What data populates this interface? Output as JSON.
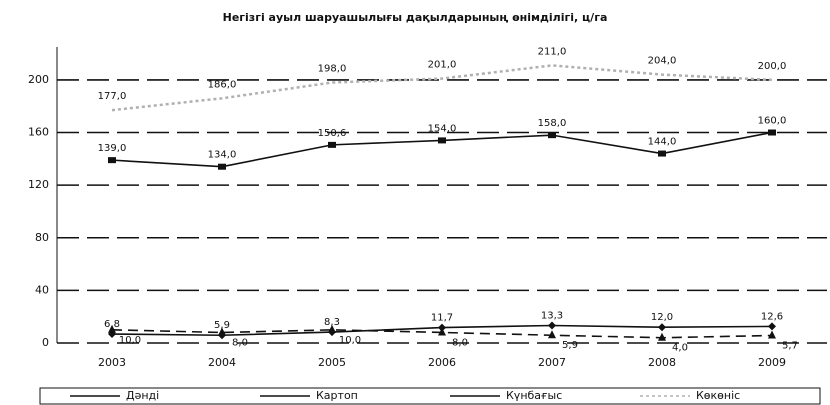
{
  "chart_data": {
    "type": "line",
    "title": "Негізгі ауыл шаруашылығы дақылдарының өнімділігі, ц/га",
    "categories": [
      "2003",
      "2004",
      "2005",
      "2006",
      "2007",
      "2008",
      "2009"
    ],
    "ylim": [
      0,
      225
    ],
    "yticks": [
      0,
      40,
      80,
      120,
      160,
      200
    ],
    "grid": true,
    "legend": "bottom",
    "series": [
      {
        "name": "Дәнді",
        "color": "#111111",
        "marker": "diamond",
        "values": [
          6.8,
          5.9,
          8.3,
          11.7,
          13.3,
          12.0,
          12.6
        ],
        "value_labels": [
          "6,8",
          "5,9",
          "8,3",
          "11,7",
          "13,3",
          "12,0",
          "12,6"
        ]
      },
      {
        "name": "Картоп",
        "color": "#111111",
        "marker": "square",
        "values": [
          139.0,
          134.0,
          150.6,
          154.0,
          158.0,
          144.0,
          160.0
        ],
        "value_labels": [
          "139,0",
          "134,0",
          "150,6",
          "154,0",
          "158,0",
          "144,0",
          "160,0"
        ]
      },
      {
        "name": "Күнбағыс",
        "color": "#111111",
        "marker": "triangle",
        "values": [
          10.0,
          8.0,
          10.0,
          8.0,
          5.9,
          4.0,
          5.7
        ],
        "value_labels": [
          "10,0",
          "8,0",
          "10,0",
          "8,0",
          "5,9",
          "4,0",
          "5,7"
        ]
      },
      {
        "name": "Көкөніс",
        "color": "#b0b0b0",
        "marker": "none",
        "values": [
          177.0,
          186.0,
          198.0,
          201.0,
          211.0,
          204.0,
          200.0
        ],
        "value_labels": [
          "177,0",
          "186,0",
          "198,0",
          "201,0",
          "211,0",
          "204,0",
          "200,0"
        ]
      }
    ]
  }
}
